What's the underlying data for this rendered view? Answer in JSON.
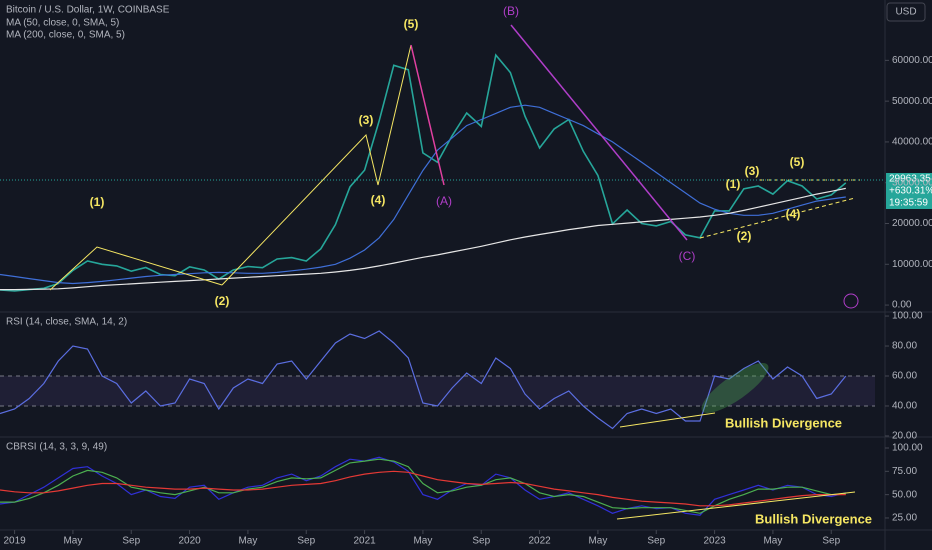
{
  "chart_data": [
    {
      "type": "line",
      "title": "Bitcoin / U.S. Dollar, 1W, COINBASE",
      "currency": "USD",
      "price_tag": [
        "29963.35",
        "+630.31%",
        "19:35:59"
      ],
      "annotations": [
        "(1)",
        "(2)",
        "(3)",
        "(4)",
        "(5)",
        "(A)",
        "(B)",
        "(C)",
        "(1)",
        "(2)",
        "(3)",
        "(4)",
        "(5)"
      ],
      "x": [
        "2018-12",
        "2019-01",
        "2019-02",
        "2019-03",
        "2019-04",
        "2019-05",
        "2019-06",
        "2019-07",
        "2019-08",
        "2019-09",
        "2019-10",
        "2019-11",
        "2019-12",
        "2020-01",
        "2020-02",
        "2020-03",
        "2020-04",
        "2020-05",
        "2020-06",
        "2020-07",
        "2020-08",
        "2020-09",
        "2020-10",
        "2020-11",
        "2020-12",
        "2021-01",
        "2021-02",
        "2021-03",
        "2021-04",
        "2021-05",
        "2021-06",
        "2021-07",
        "2021-08",
        "2021-09",
        "2021-10",
        "2021-11",
        "2021-12",
        "2022-01",
        "2022-02",
        "2022-03",
        "2022-04",
        "2022-05",
        "2022-06",
        "2022-07",
        "2022-08",
        "2022-09",
        "2022-10",
        "2022-11",
        "2022-12",
        "2023-01",
        "2023-02",
        "2023-03",
        "2023-04",
        "2023-05",
        "2023-06",
        "2023-07",
        "2023-08",
        "2023-09",
        "2023-10"
      ],
      "xlim": [
        "2018-12",
        "2023-12"
      ],
      "ylim": [
        -1700,
        74800
      ],
      "yticks": [
        {
          "value": 0,
          "label": "0.00"
        },
        {
          "value": 10000,
          "label": "10000.00"
        },
        {
          "value": 20000,
          "label": "20000.00"
        },
        {
          "value": 30000,
          "label": "30000.00"
        },
        {
          "value": 40000,
          "label": "40000.00"
        },
        {
          "value": 50000,
          "label": "50000.00"
        },
        {
          "value": 60000,
          "label": "60000.00"
        }
      ],
      "series": [
        {
          "color": "#26a69a",
          "values": [
            3700,
            3450,
            3800,
            4100,
            5300,
            8500,
            10800,
            10000,
            9600,
            8300,
            9200,
            7500,
            7200,
            9350,
            8600,
            6400,
            8600,
            9450,
            9150,
            11300,
            11650,
            10800,
            13800,
            19700,
            29000,
            33100,
            45200,
            58800,
            57700,
            37300,
            35000,
            41500,
            47100,
            43800,
            61300,
            57000,
            46300,
            38500,
            43200,
            45500,
            37700,
            31800,
            19900,
            23300,
            20000,
            19400,
            20500,
            17200,
            16500,
            23100,
            23100,
            28500,
            29200,
            27200,
            30500,
            29200,
            26000,
            27000,
            29963.35
          ]
        },
        {
          "name": "MA (50, close, 0, SMA, 5)",
          "color": "#3f6fd8",
          "values": [
            7500,
            7000,
            6500,
            6000,
            5500,
            5300,
            5500,
            5800,
            6200,
            6600,
            7000,
            7300,
            7500,
            7700,
            7900,
            8000,
            7900,
            7800,
            7800,
            8000,
            8400,
            8800,
            9300,
            10000,
            11500,
            13500,
            16500,
            21000,
            27000,
            33000,
            38000,
            41000,
            44000,
            45500,
            47000,
            48500,
            49000,
            48500,
            47000,
            45500,
            44000,
            42000,
            40000,
            37500,
            35000,
            32500,
            30000,
            27500,
            25000,
            23500,
            22500,
            22000,
            22000,
            22500,
            23500,
            24500,
            25500,
            26000,
            26500
          ]
        },
        {
          "name": "MA (200, close, 0, SMA, 5)",
          "color": "#e6e6e6",
          "values": [
            3800,
            3800,
            3850,
            3900,
            4000,
            4200,
            4500,
            4800,
            5000,
            5200,
            5400,
            5600,
            5800,
            6000,
            6200,
            6400,
            6600,
            6800,
            7000,
            7200,
            7400,
            7600,
            7800,
            8100,
            8500,
            9000,
            9600,
            10300,
            11000,
            11700,
            12300,
            13000,
            13700,
            14400,
            15200,
            16000,
            16700,
            17300,
            17900,
            18500,
            19000,
            19500,
            19800,
            20100,
            20400,
            20700,
            21000,
            21300,
            21600,
            22000,
            22500,
            23200,
            24000,
            24800,
            25600,
            26400,
            27200,
            27900,
            28600
          ]
        }
      ]
    },
    {
      "type": "line",
      "title": "RSI (14, close, SMA, 14, 2)",
      "annotations": [
        "Bullish Divergence"
      ],
      "x": [
        "2018-12",
        "2019-01",
        "2019-02",
        "2019-03",
        "2019-04",
        "2019-05",
        "2019-06",
        "2019-07",
        "2019-08",
        "2019-09",
        "2019-10",
        "2019-11",
        "2019-12",
        "2020-01",
        "2020-02",
        "2020-03",
        "2020-04",
        "2020-05",
        "2020-06",
        "2020-07",
        "2020-08",
        "2020-09",
        "2020-10",
        "2020-11",
        "2020-12",
        "2021-01",
        "2021-02",
        "2021-03",
        "2021-04",
        "2021-05",
        "2021-06",
        "2021-07",
        "2021-08",
        "2021-09",
        "2021-10",
        "2021-11",
        "2021-12",
        "2022-01",
        "2022-02",
        "2022-03",
        "2022-04",
        "2022-05",
        "2022-06",
        "2022-07",
        "2022-08",
        "2022-09",
        "2022-10",
        "2022-11",
        "2022-12",
        "2023-01",
        "2023-02",
        "2023-03",
        "2023-04",
        "2023-05",
        "2023-06",
        "2023-07",
        "2023-08",
        "2023-09",
        "2023-10"
      ],
      "xlim": [
        "2018-12",
        "2023-12"
      ],
      "ylim": [
        19.3,
        102.7
      ],
      "band": [
        40,
        60
      ],
      "yticks": [
        {
          "value": 20,
          "label": "20.00"
        },
        {
          "value": 40,
          "label": "40.00"
        },
        {
          "value": 60,
          "label": "60.00"
        },
        {
          "value": 80,
          "label": "80.00"
        },
        {
          "value": 100,
          "label": "100.00"
        }
      ],
      "series": [
        {
          "color": "#5b6ee1",
          "values": [
            35,
            38,
            45,
            55,
            70,
            80,
            78,
            60,
            55,
            42,
            50,
            40,
            42,
            58,
            55,
            38,
            52,
            58,
            55,
            68,
            70,
            58,
            70,
            82,
            88,
            85,
            90,
            82,
            72,
            42,
            40,
            52,
            62,
            55,
            72,
            65,
            48,
            38,
            45,
            50,
            40,
            32,
            25,
            35,
            38,
            35,
            38,
            30,
            30,
            60,
            58,
            65,
            70,
            58,
            66,
            60,
            45,
            48,
            60
          ]
        }
      ]
    },
    {
      "type": "line",
      "title": "CBRSI (14, 3, 3, 9, 49)",
      "annotations": [
        "Bullish Divergence"
      ],
      "x": [
        "2018-12",
        "2019-01",
        "2019-02",
        "2019-03",
        "2019-04",
        "2019-05",
        "2019-06",
        "2019-07",
        "2019-08",
        "2019-09",
        "2019-10",
        "2019-11",
        "2019-12",
        "2020-01",
        "2020-02",
        "2020-03",
        "2020-04",
        "2020-05",
        "2020-06",
        "2020-07",
        "2020-08",
        "2020-09",
        "2020-10",
        "2020-11",
        "2020-12",
        "2021-01",
        "2021-02",
        "2021-03",
        "2021-04",
        "2021-05",
        "2021-06",
        "2021-07",
        "2021-08",
        "2021-09",
        "2021-10",
        "2021-11",
        "2021-12",
        "2022-01",
        "2022-02",
        "2022-03",
        "2022-04",
        "2022-05",
        "2022-06",
        "2022-07",
        "2022-08",
        "2022-09",
        "2022-10",
        "2022-11",
        "2022-12",
        "2023-01",
        "2023-02",
        "2023-03",
        "2023-04",
        "2023-05",
        "2023-06",
        "2023-07",
        "2023-08",
        "2023-09",
        "2023-10"
      ],
      "xlim": [
        "2018-12",
        "2023-12"
      ],
      "xticks": [
        {
          "value": "2019-01",
          "label": "2019"
        },
        {
          "value": "2019-05",
          "label": "May"
        },
        {
          "value": "2019-09",
          "label": "Sep"
        },
        {
          "value": "2020-01",
          "label": "2020"
        },
        {
          "value": "2020-05",
          "label": "May"
        },
        {
          "value": "2020-09",
          "label": "Sep"
        },
        {
          "value": "2021-01",
          "label": "2021"
        },
        {
          "value": "2021-05",
          "label": "May"
        },
        {
          "value": "2021-09",
          "label": "Sep"
        },
        {
          "value": "2022-01",
          "label": "2022"
        },
        {
          "value": "2022-05",
          "label": "May"
        },
        {
          "value": "2022-09",
          "label": "Sep"
        },
        {
          "value": "2023-01",
          "label": "2023"
        },
        {
          "value": "2023-05",
          "label": "May"
        },
        {
          "value": "2023-09",
          "label": "Sep"
        }
      ],
      "ylim": [
        12.1,
        111.8
      ],
      "yticks": [
        {
          "value": 25,
          "label": "25.00"
        },
        {
          "value": 50,
          "label": "50.00"
        },
        {
          "value": 75,
          "label": "75.00"
        },
        {
          "value": 100,
          "label": "100.00"
        }
      ],
      "series": [
        {
          "color": "#3030d8",
          "values": [
            40,
            42,
            50,
            58,
            68,
            78,
            80,
            70,
            62,
            50,
            55,
            48,
            46,
            58,
            60,
            45,
            52,
            58,
            60,
            68,
            72,
            65,
            70,
            80,
            88,
            86,
            90,
            85,
            75,
            50,
            45,
            55,
            62,
            60,
            72,
            68,
            55,
            45,
            48,
            52,
            45,
            38,
            30,
            35,
            38,
            35,
            36,
            30,
            28,
            45,
            50,
            55,
            60,
            55,
            60,
            58,
            50,
            48,
            52
          ]
        },
        {
          "color": "#4caf50",
          "values": [
            42,
            42,
            46,
            52,
            60,
            70,
            76,
            74,
            68,
            58,
            55,
            52,
            50,
            54,
            58,
            52,
            52,
            56,
            58,
            64,
            68,
            67,
            68,
            76,
            84,
            86,
            88,
            86,
            80,
            62,
            52,
            54,
            58,
            60,
            66,
            68,
            62,
            52,
            48,
            50,
            48,
            42,
            36,
            35,
            36,
            36,
            36,
            33,
            30,
            38,
            45,
            50,
            56,
            56,
            58,
            58,
            54,
            50,
            51
          ]
        },
        {
          "color": "#e53935",
          "values": [
            55,
            53,
            52,
            52,
            54,
            57,
            60,
            62,
            62,
            60,
            58,
            57,
            56,
            56,
            57,
            56,
            55,
            55,
            56,
            58,
            60,
            61,
            62,
            65,
            69,
            72,
            74,
            75,
            74,
            70,
            66,
            64,
            62,
            61,
            62,
            63,
            62,
            59,
            56,
            54,
            52,
            50,
            47,
            45,
            43,
            42,
            41,
            40,
            38,
            38,
            39,
            41,
            43,
            45,
            47,
            49,
            50,
            50,
            50
          ]
        }
      ]
    }
  ]
}
